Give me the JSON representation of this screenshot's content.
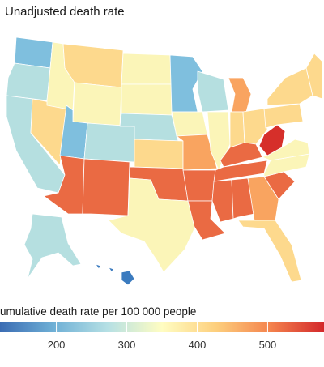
{
  "panel": {
    "title": "Unadjusted death rate"
  },
  "legend": {
    "title": "umulative death rate per 100 000 people",
    "scale_min": 120,
    "scale_max": 580,
    "ticks": [
      {
        "value": 200,
        "label": "200"
      },
      {
        "value": 300,
        "label": "300"
      },
      {
        "value": 400,
        "label": "400"
      },
      {
        "value": 500,
        "label": "500"
      }
    ],
    "gradient_colors": [
      "#3b6cb3",
      "#6fb0d6",
      "#b6e0e4",
      "#fffdc2",
      "#fdcf7d",
      "#f4834d",
      "#d3282b"
    ]
  },
  "colors": {
    "very_low": "#3b7bbf",
    "low": "#7fbfde",
    "low_mid": "#b5dfe0",
    "mid": "#fbf5b8",
    "mid_high": "#fdd98d",
    "high": "#f9a460",
    "very_high": "#ea6a43",
    "extreme": "#d62f2a"
  },
  "states": {
    "WA": "low",
    "OR": "low_mid",
    "CA": "low_mid",
    "NV": "mid_high",
    "ID": "mid",
    "MT": "mid_high",
    "WY": "mid",
    "UT": "low",
    "AZ": "very_high",
    "CO": "low_mid",
    "NM": "very_high",
    "ND": "mid",
    "SD": "mid",
    "NE": "low_mid",
    "KS": "mid_high",
    "OK": "very_high",
    "TX": "mid",
    "MN": "low",
    "IA": "mid",
    "MO": "high",
    "AR": "very_high",
    "LA": "very_high",
    "WI": "low_mid",
    "IL": "mid",
    "MI": "high",
    "IN": "mid_high",
    "OH": "mid_high",
    "KY": "very_high",
    "TN": "very_high",
    "MS": "very_high",
    "AL": "very_high",
    "GA": "high",
    "FL": "mid_high",
    "SC": "very_high",
    "NC": "mid",
    "VA": "mid",
    "WV": "extreme",
    "PA": "mid_high",
    "NY": "mid_high",
    "NE_states": "mid_high",
    "AK": "low_mid",
    "HI": "very_low"
  }
}
